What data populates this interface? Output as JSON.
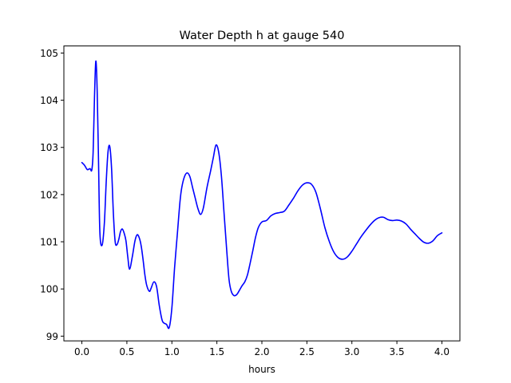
{
  "chart_data": {
    "type": "line",
    "title": "Water Depth h at gauge 540",
    "xlabel": "hours",
    "ylabel": "",
    "xlim": [
      -0.2,
      4.2
    ],
    "ylim": [
      98.9,
      105.15
    ],
    "grid": false,
    "x_ticks": [
      0.0,
      0.5,
      1.0,
      1.5,
      2.0,
      2.5,
      3.0,
      3.5,
      4.0
    ],
    "x_tick_labels": [
      "0.0",
      "0.5",
      "1.0",
      "1.5",
      "2.0",
      "2.5",
      "3.0",
      "3.5",
      "4.0"
    ],
    "y_ticks": [
      99,
      100,
      101,
      102,
      103,
      104,
      105
    ],
    "y_tick_labels": [
      "99",
      "100",
      "101",
      "102",
      "103",
      "104",
      "105"
    ],
    "series": [
      {
        "color": "#0000ff",
        "x": [
          0.0,
          0.03,
          0.06,
          0.09,
          0.11,
          0.125,
          0.14,
          0.155,
          0.17,
          0.185,
          0.2,
          0.225,
          0.25,
          0.27,
          0.29,
          0.31,
          0.33,
          0.35,
          0.37,
          0.39,
          0.41,
          0.43,
          0.45,
          0.47,
          0.49,
          0.51,
          0.53,
          0.56,
          0.59,
          0.615,
          0.64,
          0.66,
          0.68,
          0.7,
          0.72,
          0.75,
          0.77,
          0.8,
          0.83,
          0.86,
          0.89,
          0.91,
          0.94,
          0.97,
          1.0,
          1.03,
          1.06,
          1.09,
          1.11,
          1.14,
          1.17,
          1.2,
          1.23,
          1.26,
          1.29,
          1.32,
          1.35,
          1.39,
          1.43,
          1.46,
          1.49,
          1.52,
          1.55,
          1.58,
          1.61,
          1.635,
          1.66,
          1.69,
          1.72,
          1.75,
          1.78,
          1.81,
          1.84,
          1.87,
          1.9,
          1.93,
          1.96,
          2.0,
          2.05,
          2.1,
          2.15,
          2.2,
          2.25,
          2.3,
          2.35,
          2.4,
          2.45,
          2.5,
          2.55,
          2.6,
          2.65,
          2.7,
          2.75,
          2.8,
          2.85,
          2.9,
          2.95,
          3.0,
          3.05,
          3.1,
          3.15,
          3.2,
          3.25,
          3.3,
          3.35,
          3.4,
          3.45,
          3.5,
          3.55,
          3.6,
          3.65,
          3.7,
          3.75,
          3.8,
          3.85,
          3.9,
          3.95,
          4.0
        ],
        "y": [
          102.68,
          102.62,
          102.53,
          102.55,
          102.52,
          102.9,
          104.05,
          104.83,
          104.2,
          102.7,
          101.2,
          100.93,
          101.4,
          102.25,
          102.9,
          103.02,
          102.55,
          101.6,
          101.0,
          100.94,
          101.05,
          101.22,
          101.27,
          101.18,
          101.02,
          100.68,
          100.42,
          100.68,
          101.02,
          101.15,
          101.07,
          100.9,
          100.62,
          100.3,
          100.08,
          99.95,
          100.02,
          100.15,
          100.05,
          99.65,
          99.35,
          99.28,
          99.25,
          99.18,
          99.6,
          100.45,
          101.15,
          101.85,
          102.15,
          102.38,
          102.46,
          102.38,
          102.15,
          101.92,
          101.7,
          101.58,
          101.72,
          102.15,
          102.5,
          102.78,
          103.05,
          102.9,
          102.4,
          101.6,
          100.8,
          100.2,
          99.95,
          99.86,
          99.88,
          99.97,
          100.07,
          100.15,
          100.3,
          100.55,
          100.82,
          101.1,
          101.3,
          101.42,
          101.45,
          101.55,
          101.6,
          101.62,
          101.65,
          101.78,
          101.92,
          102.08,
          102.2,
          102.25,
          102.22,
          102.05,
          101.7,
          101.3,
          101.0,
          100.78,
          100.66,
          100.63,
          100.68,
          100.8,
          100.95,
          101.1,
          101.23,
          101.35,
          101.45,
          101.51,
          101.52,
          101.47,
          101.45,
          101.46,
          101.44,
          101.38,
          101.27,
          101.17,
          101.07,
          100.99,
          100.97,
          101.02,
          101.13,
          101.19
        ]
      }
    ]
  }
}
